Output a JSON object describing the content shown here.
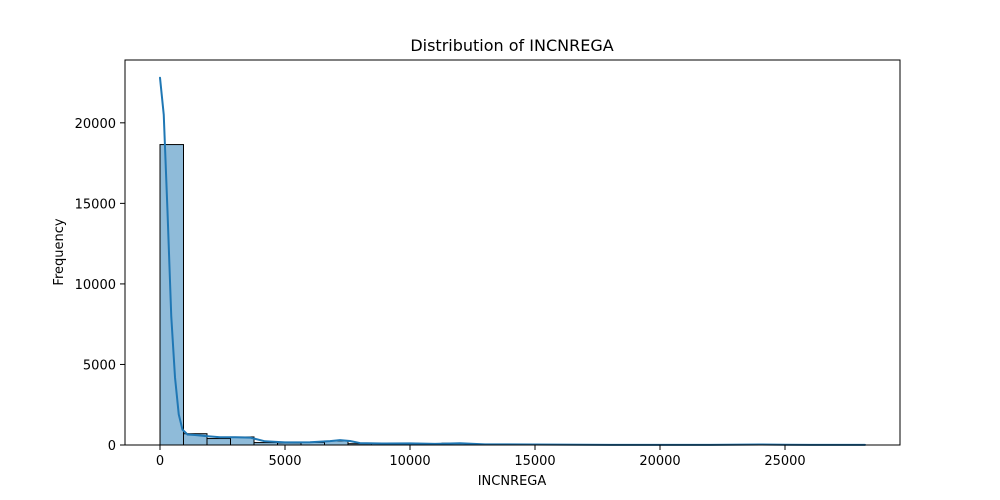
{
  "chart_data": {
    "type": "bar",
    "title": "Distribution of INCNREGA",
    "xlabel": "INCNREGA",
    "ylabel": "Frequency",
    "xlim": [
      -1400,
      29600
    ],
    "ylim": [
      0,
      23900
    ],
    "xticks": [
      0,
      5000,
      10000,
      15000,
      20000,
      25000
    ],
    "yticks": [
      0,
      5000,
      10000,
      15000,
      20000
    ],
    "grid": false,
    "bar_color": "#1f77b4",
    "bar_opacity": 0.5,
    "bins": [
      {
        "x0": 0,
        "x1": 940,
        "count": 18650
      },
      {
        "x0": 940,
        "x1": 1880,
        "count": 700
      },
      {
        "x0": 1880,
        "x1": 2820,
        "count": 400
      },
      {
        "x0": 2820,
        "x1": 3760,
        "count": 500
      },
      {
        "x0": 3760,
        "x1": 4700,
        "count": 150
      },
      {
        "x0": 4700,
        "x1": 5640,
        "count": 130
      },
      {
        "x0": 5640,
        "x1": 6580,
        "count": 160
      },
      {
        "x0": 6580,
        "x1": 7520,
        "count": 250
      },
      {
        "x0": 7520,
        "x1": 8460,
        "count": 80
      },
      {
        "x0": 8460,
        "x1": 9400,
        "count": 90
      },
      {
        "x0": 9400,
        "x1": 10340,
        "count": 100
      },
      {
        "x0": 10340,
        "x1": 11280,
        "count": 60
      },
      {
        "x0": 11280,
        "x1": 12220,
        "count": 110
      },
      {
        "x0": 12220,
        "x1": 13160,
        "count": 20
      },
      {
        "x0": 13160,
        "x1": 14100,
        "count": 10
      },
      {
        "x0": 14100,
        "x1": 15040,
        "count": 30
      },
      {
        "x0": 15040,
        "x1": 15980,
        "count": 10
      },
      {
        "x0": 15980,
        "x1": 16920,
        "count": 5
      },
      {
        "x0": 16920,
        "x1": 17860,
        "count": 5
      },
      {
        "x0": 17860,
        "x1": 18800,
        "count": 5
      },
      {
        "x0": 18800,
        "x1": 19740,
        "count": 5
      },
      {
        "x0": 19740,
        "x1": 20680,
        "count": 5
      },
      {
        "x0": 20680,
        "x1": 21620,
        "count": 10
      },
      {
        "x0": 21620,
        "x1": 22560,
        "count": 5
      },
      {
        "x0": 22560,
        "x1": 23500,
        "count": 5
      },
      {
        "x0": 23500,
        "x1": 24440,
        "count": 30
      },
      {
        "x0": 24440,
        "x1": 25380,
        "count": 5
      },
      {
        "x0": 25380,
        "x1": 26320,
        "count": 5
      },
      {
        "x0": 26320,
        "x1": 27260,
        "count": 5
      },
      {
        "x0": 27260,
        "x1": 28200,
        "count": 5
      }
    ],
    "kde": {
      "color": "#1f77b4",
      "x": [
        0,
        150,
        300,
        450,
        600,
        750,
        900,
        1100,
        1400,
        1800,
        2400,
        3000,
        3600,
        4200,
        5000,
        6000,
        6800,
        7200,
        7600,
        8000,
        9000,
        10000,
        11000,
        12000,
        13000,
        15000,
        18000,
        20000,
        22000,
        24000,
        25000,
        26000,
        28200
      ],
      "y": [
        22800,
        20500,
        14500,
        8000,
        4200,
        1900,
        950,
        650,
        620,
        560,
        480,
        480,
        460,
        230,
        160,
        170,
        240,
        300,
        250,
        120,
        90,
        100,
        70,
        110,
        40,
        30,
        10,
        10,
        10,
        30,
        15,
        8,
        5
      ]
    }
  }
}
